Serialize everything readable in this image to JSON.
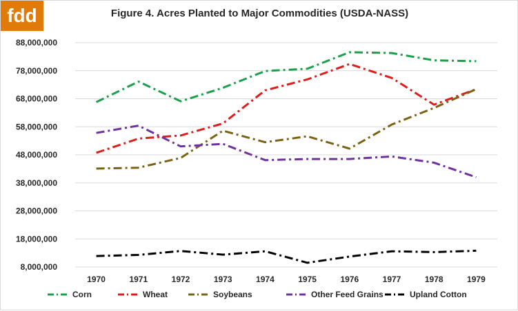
{
  "logo": {
    "text": "fdd",
    "color": "#e07b0a"
  },
  "chart_data": {
    "type": "line",
    "title": "Figure 4. Acres Planted to Major Commodities (USDA-NASS)",
    "xlabel": "",
    "ylabel": "",
    "categories": [
      "1970",
      "1971",
      "1972",
      "1973",
      "1974",
      "1975",
      "1976",
      "1977",
      "1978",
      "1979"
    ],
    "ylim": [
      8000000,
      88000000
    ],
    "yticks": [
      8000000,
      18000000,
      28000000,
      38000000,
      48000000,
      58000000,
      68000000,
      78000000,
      88000000
    ],
    "ytick_labels": [
      "8,000,000",
      "18,000,000",
      "28,000,000",
      "38,000,000",
      "48,000,000",
      "58,000,000",
      "68,000,000",
      "78,000,000",
      "88,000,000"
    ],
    "grid": true,
    "legend_position": "bottom",
    "line_style": "dash-dot",
    "series": [
      {
        "name": "Corn",
        "color": "#1aa04a",
        "values": [
          66800000,
          74100000,
          67100000,
          71900000,
          77900000,
          78700000,
          84600000,
          84300000,
          81700000,
          81400000
        ]
      },
      {
        "name": "Wheat",
        "color": "#e01b1b",
        "values": [
          48700000,
          53800000,
          54900000,
          59200000,
          71000000,
          74900000,
          80400000,
          75400000,
          65900000,
          71400000
        ]
      },
      {
        "name": "Soybeans",
        "color": "#7a6212",
        "values": [
          43100000,
          43400000,
          46900000,
          56600000,
          52500000,
          54600000,
          50200000,
          58800000,
          64700000,
          71400000
        ]
      },
      {
        "name": "Other Feed Grains",
        "color": "#7030a0",
        "values": [
          55800000,
          58400000,
          51000000,
          51900000,
          46100000,
          46500000,
          46500000,
          47400000,
          45200000,
          40000000
        ]
      },
      {
        "name": "Upland Cotton",
        "color": "#000000",
        "values": [
          11900000,
          12300000,
          13700000,
          12400000,
          13600000,
          9500000,
          11700000,
          13600000,
          13300000,
          13800000
        ]
      }
    ]
  }
}
